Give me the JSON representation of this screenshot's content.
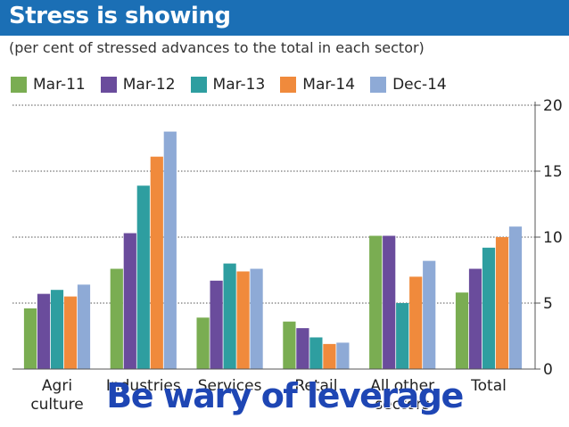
{
  "header": {
    "title": "Stress is showing",
    "subtitle": "(per cent of stressed advances to the total in each sector)"
  },
  "overlay": {
    "caption": "Be wary of leverage"
  },
  "colors": {
    "header_bg": "#1b6fb5",
    "overlay_text": "#1e46b4"
  },
  "chart_data": {
    "type": "bar",
    "title": "Stress is showing",
    "subtitle": "(per cent of stressed advances to the total in each sector)",
    "categories": [
      "Agri\nculture",
      "Industries",
      "Services",
      "Retail",
      "All other\nsectors",
      "Total"
    ],
    "series": [
      {
        "name": "Mar-11",
        "color": "#7aad52",
        "values": [
          4.6,
          7.6,
          3.9,
          3.6,
          10.1,
          5.8
        ]
      },
      {
        "name": "Mar-12",
        "color": "#6a4c9c",
        "values": [
          5.7,
          10.3,
          6.7,
          3.1,
          10.1,
          7.6
        ]
      },
      {
        "name": "Mar-13",
        "color": "#2e9ea0",
        "values": [
          6.0,
          13.9,
          8.0,
          2.4,
          5.0,
          9.2
        ]
      },
      {
        "name": "Mar-14",
        "color": "#f08a3c",
        "values": [
          5.5,
          16.1,
          7.4,
          1.9,
          7.0,
          10.0
        ]
      },
      {
        "name": "Dec-14",
        "color": "#8eaad6",
        "values": [
          6.4,
          18.0,
          7.6,
          2.0,
          8.2,
          10.8
        ]
      }
    ],
    "ylim": [
      0,
      20
    ],
    "yticks": [
      0,
      5,
      10,
      15,
      20
    ],
    "y_axis_side": "right",
    "grid": true,
    "legend_position": "top-left",
    "xlabel": "",
    "ylabel": ""
  }
}
